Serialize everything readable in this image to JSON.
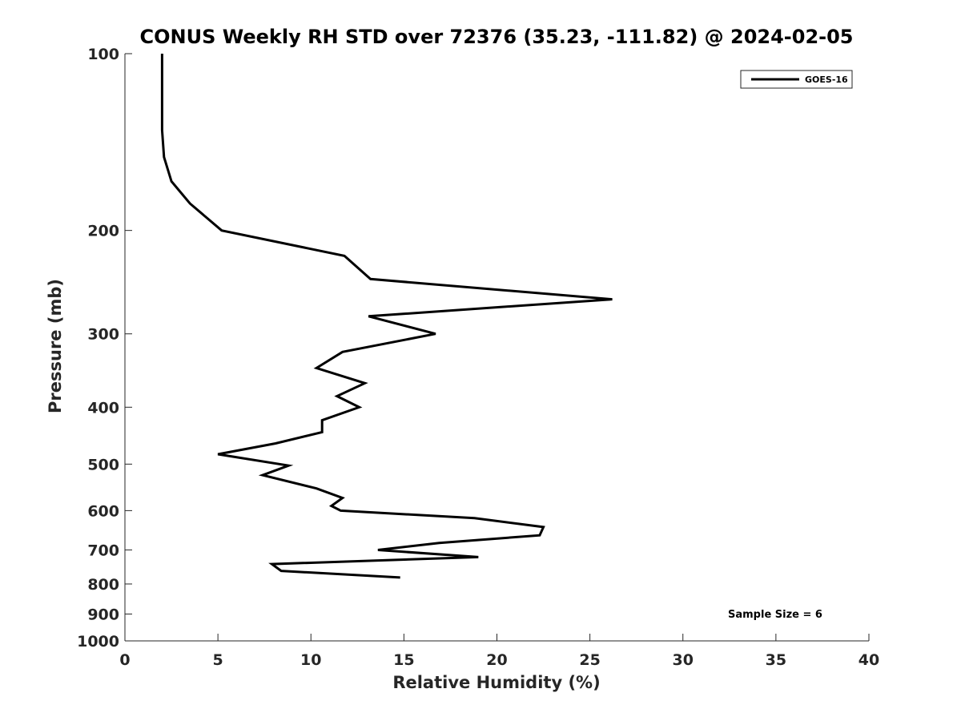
{
  "chart_data": {
    "type": "line",
    "title": "CONUS Weekly RH STD over 72376 (35.23, -111.82) @ 2024-02-05",
    "xlabel": "Relative Humidity (%)",
    "ylabel": "Pressure (mb)",
    "xlim": [
      0,
      40
    ],
    "ylim": [
      100,
      1000
    ],
    "y_scale": "log",
    "y_reversed": true,
    "x_ticks": [
      "0",
      "5",
      "10",
      "15",
      "20",
      "25",
      "30",
      "35",
      "40"
    ],
    "y_ticks": [
      "100",
      "200",
      "300",
      "400",
      "500",
      "600",
      "700",
      "800",
      "900",
      "1000"
    ],
    "grid": false,
    "legend_position": "top-right",
    "line_color": "#000000",
    "series": [
      {
        "name": "GOES-16",
        "points": [
          {
            "x": 2.0,
            "y": 100
          },
          {
            "x": 2.0,
            "y": 115
          },
          {
            "x": 2.0,
            "y": 135
          },
          {
            "x": 2.1,
            "y": 150
          },
          {
            "x": 2.5,
            "y": 165
          },
          {
            "x": 3.5,
            "y": 180
          },
          {
            "x": 5.2,
            "y": 200
          },
          {
            "x": 11.8,
            "y": 221
          },
          {
            "x": 13.2,
            "y": 242
          },
          {
            "x": 26.2,
            "y": 262
          },
          {
            "x": 13.1,
            "y": 280
          },
          {
            "x": 16.7,
            "y": 300
          },
          {
            "x": 11.7,
            "y": 322
          },
          {
            "x": 10.3,
            "y": 343
          },
          {
            "x": 12.9,
            "y": 364
          },
          {
            "x": 11.4,
            "y": 383
          },
          {
            "x": 12.6,
            "y": 400
          },
          {
            "x": 10.6,
            "y": 421
          },
          {
            "x": 10.6,
            "y": 441
          },
          {
            "x": 8.1,
            "y": 461
          },
          {
            "x": 5.0,
            "y": 481
          },
          {
            "x": 8.8,
            "y": 503
          },
          {
            "x": 7.4,
            "y": 522
          },
          {
            "x": 10.3,
            "y": 550
          },
          {
            "x": 11.7,
            "y": 571
          },
          {
            "x": 11.1,
            "y": 589
          },
          {
            "x": 11.6,
            "y": 600
          },
          {
            "x": 18.8,
            "y": 618
          },
          {
            "x": 22.5,
            "y": 640
          },
          {
            "x": 22.3,
            "y": 661
          },
          {
            "x": 16.9,
            "y": 681
          },
          {
            "x": 13.6,
            "y": 700
          },
          {
            "x": 19.0,
            "y": 720
          },
          {
            "x": 7.9,
            "y": 740
          },
          {
            "x": 8.4,
            "y": 760
          },
          {
            "x": 14.8,
            "y": 780
          }
        ]
      }
    ],
    "annotations": [
      {
        "text": "Sample Size = 6",
        "position": "bottom-right"
      }
    ]
  }
}
